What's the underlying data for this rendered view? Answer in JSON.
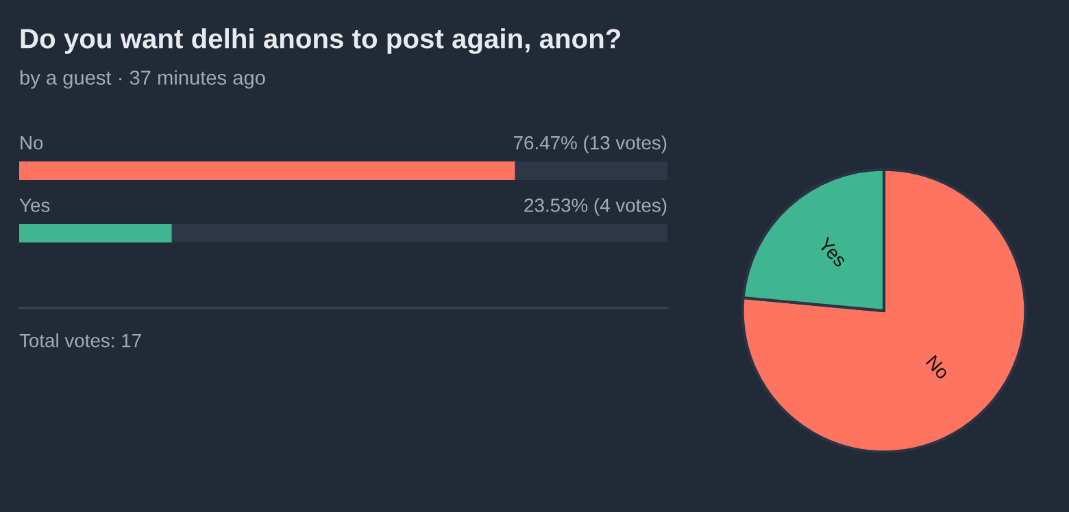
{
  "chart_data": [
    {
      "type": "bar",
      "orientation": "horizontal",
      "title": "Do you want delhi anons to post again, anon?",
      "subtitle": "by a guest · 37 minutes ago",
      "categories": [
        "No",
        "Yes"
      ],
      "values": [
        76.47,
        23.53
      ],
      "colors": [
        "#ff7461",
        "#3fb68f"
      ],
      "value_labels": [
        "76.47% (13 votes)",
        "23.53% (4 votes)"
      ],
      "xlim": [
        0,
        100
      ],
      "tick_labels": false,
      "annotations": [
        "Total votes: 17"
      ]
    },
    {
      "type": "pie",
      "categories": [
        "No",
        "Yes"
      ],
      "values": [
        76.47,
        23.53
      ],
      "colors": [
        "#ff7461",
        "#3fb68f"
      ]
    }
  ]
}
